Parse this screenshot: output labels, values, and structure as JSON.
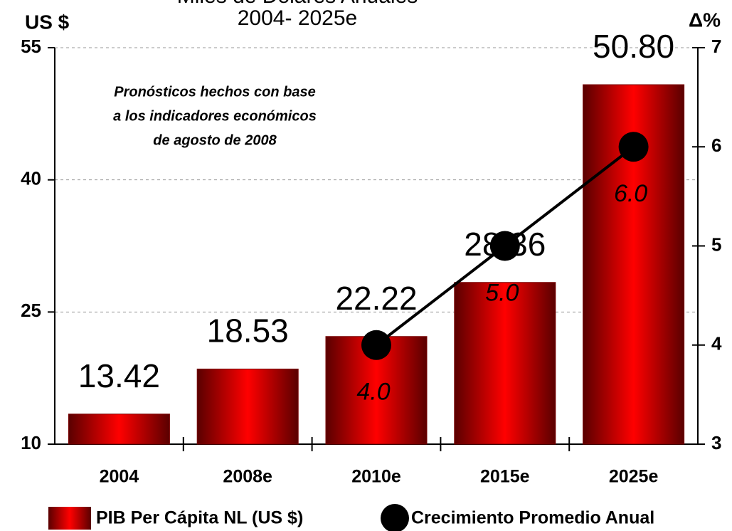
{
  "chart_data": {
    "type": "bar",
    "title": "Miles de Dólares Anuales",
    "subtitle": "2004- 2025e",
    "y_label": "US $",
    "y2_label": "Δ%",
    "annotation": [
      "Pronósticos  hechos con base",
      "a los indicadores económicos",
      "de agosto de 2008"
    ],
    "categories": [
      "2004",
      "2008e",
      "2010e",
      "2015e",
      "2025e"
    ],
    "series": [
      {
        "name": "PIB Per Cápita NL (US $)",
        "type": "bar",
        "color": "#ff0000",
        "values": [
          13.42,
          18.53,
          22.22,
          28.36,
          50.8
        ],
        "value_labels": [
          "13.42",
          "18.53",
          "22.22",
          "28.36",
          "50.80"
        ]
      },
      {
        "name": "Crecimiento Promedio Anual",
        "type": "line",
        "axis": "y2",
        "color": "#000000",
        "values": [
          null,
          null,
          4,
          5,
          6
        ],
        "value_labels": [
          null,
          null,
          "4.0",
          "5.0",
          "6.0"
        ]
      }
    ],
    "ylim": [
      10,
      55
    ],
    "yticks": [
      10,
      25,
      40,
      55
    ],
    "y2lim": [
      3,
      7
    ],
    "y2ticks": [
      3,
      4,
      5,
      6,
      7
    ],
    "grid": true
  }
}
